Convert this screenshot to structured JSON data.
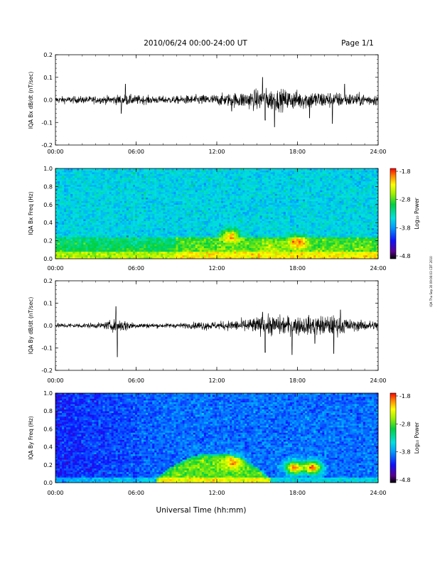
{
  "header": {
    "title": "2010/06/24  00:00-24:00 UT",
    "page": "Page 1/1"
  },
  "side_note": "IQA Thu Sep 30 09:06:03 CDT 2010",
  "colorbar": {
    "label": "Log₁₀ Power",
    "ticks": [
      "-1.8",
      "-2.8",
      "-3.8",
      "-4.8"
    ]
  },
  "chart_data": [
    {
      "type": "line",
      "ylabel": "IQA Bx dB/dt (nT/sec)",
      "ylim": [
        -0.2,
        0.2
      ],
      "yticks": [
        "0.2",
        "0.1",
        "0.0",
        "-0.1",
        "-0.2"
      ],
      "xticks": [
        "00:00",
        "06:00",
        "12:00",
        "18:00",
        "24:00"
      ],
      "xlim_hours": [
        0,
        24
      ],
      "series": [
        {
          "baseline": 0.0,
          "envelope": [
            [
              0,
              0.018
            ],
            [
              3.5,
              0.02
            ],
            [
              4.5,
              0.025
            ],
            [
              5,
              0.03
            ],
            [
              6,
              0.025
            ],
            [
              7.5,
              0.02
            ],
            [
              9,
              0.02
            ],
            [
              10,
              0.025
            ],
            [
              12,
              0.03
            ],
            [
              13,
              0.035
            ],
            [
              14,
              0.045
            ],
            [
              15,
              0.055
            ],
            [
              16,
              0.06
            ],
            [
              17,
              0.055
            ],
            [
              18,
              0.05
            ],
            [
              19,
              0.05
            ],
            [
              20,
              0.045
            ],
            [
              21,
              0.04
            ],
            [
              22,
              0.035
            ],
            [
              24,
              0.03
            ]
          ],
          "spikes": [
            [
              5.2,
              0.07
            ],
            [
              4.9,
              -0.06
            ],
            [
              13.1,
              -0.05
            ],
            [
              15.4,
              0.1
            ],
            [
              15.6,
              -0.09
            ],
            [
              16.3,
              -0.12
            ],
            [
              18.9,
              -0.08
            ],
            [
              20.6,
              -0.105
            ],
            [
              21.5,
              0.07
            ]
          ]
        }
      ]
    },
    {
      "type": "heatmap",
      "ylabel": "IQA Bx Freq (Hz)",
      "ylim": [
        0.0,
        1.0
      ],
      "yticks": [
        "1.0",
        "0.8",
        "0.6",
        "0.4",
        "0.2",
        "0.0"
      ],
      "xticks": [
        "00:00",
        "06:00",
        "12:00",
        "18:00",
        "24:00"
      ],
      "xlim_hours": [
        0,
        24
      ],
      "colorscale": "Log10 Power",
      "value_range": [
        -4.8,
        -1.8
      ],
      "background_level": -3.5,
      "features": [
        {
          "desc": "low-frequency band",
          "f_max": 0.25,
          "level": -2.9
        },
        {
          "t": 13.0,
          "f": 0.25,
          "level": -2.1
        },
        {
          "t": 18.0,
          "f": 0.18,
          "level": -2.0
        },
        {
          "t": 16.0,
          "f": 0.12,
          "level": -2.5
        }
      ]
    },
    {
      "type": "line",
      "ylabel": "IQA By dB/dt (nT/sec)",
      "ylim": [
        -0.2,
        0.2
      ],
      "yticks": [
        "0.2",
        "0.1",
        "0.0",
        "-0.1",
        "-0.2"
      ],
      "xticks": [
        "00:00",
        "06:00",
        "12:00",
        "18:00",
        "24:00"
      ],
      "xlim_hours": [
        0,
        24
      ],
      "series": [
        {
          "baseline": 0.0,
          "envelope": [
            [
              0,
              0.012
            ],
            [
              3.5,
              0.015
            ],
            [
              4.2,
              0.03
            ],
            [
              5,
              0.035
            ],
            [
              6,
              0.015
            ],
            [
              8,
              0.012
            ],
            [
              10,
              0.015
            ],
            [
              11,
              0.025
            ],
            [
              12,
              0.02
            ],
            [
              13.5,
              0.03
            ],
            [
              15,
              0.045
            ],
            [
              16,
              0.055
            ],
            [
              17.5,
              0.05
            ],
            [
              19,
              0.05
            ],
            [
              20.5,
              0.055
            ],
            [
              21.5,
              0.045
            ],
            [
              22,
              0.03
            ],
            [
              24,
              0.025
            ]
          ],
          "spikes": [
            [
              4.5,
              0.085
            ],
            [
              4.6,
              -0.14
            ],
            [
              15.4,
              0.06
            ],
            [
              15.6,
              -0.12
            ],
            [
              17.6,
              -0.13
            ],
            [
              19.3,
              -0.08
            ],
            [
              20.7,
              -0.125
            ],
            [
              21.2,
              0.07
            ]
          ]
        }
      ]
    },
    {
      "type": "heatmap",
      "ylabel": "IQA By Freq (Hz)",
      "ylim": [
        0.0,
        1.0
      ],
      "yticks": [
        "1.0",
        "0.8",
        "0.6",
        "0.4",
        "0.2",
        "0.0"
      ],
      "xticks": [
        "00:00",
        "06:00",
        "12:00",
        "18:00",
        "24:00"
      ],
      "xlim_hours": [
        0,
        24
      ],
      "colorscale": "Log10 Power",
      "value_range": [
        -4.8,
        -1.8
      ],
      "background_level": -3.9,
      "features": [
        {
          "desc": "arc band",
          "t_start": 7.5,
          "t_end": 16.0,
          "f_peak": 0.28,
          "level": -2.8
        },
        {
          "t": 13.2,
          "f": 0.23,
          "level": -2.1
        },
        {
          "t": 17.8,
          "f": 0.17,
          "level": -2.0
        },
        {
          "t": 19.1,
          "f": 0.17,
          "level": -2.0
        }
      ]
    }
  ],
  "xaxis_label": "Universal Time (hh:mm)"
}
